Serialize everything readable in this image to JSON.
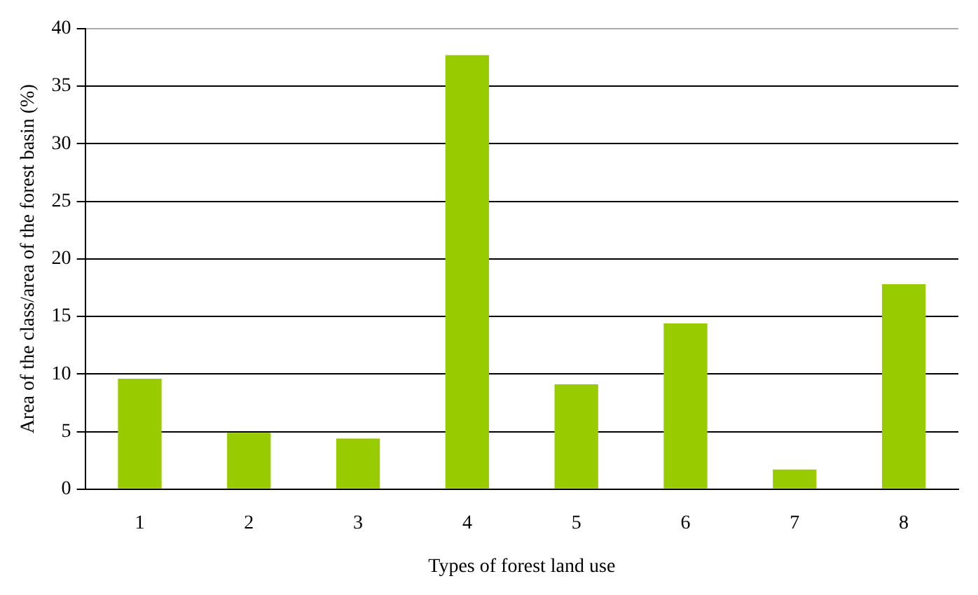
{
  "chart_data": {
    "type": "bar",
    "xlabel": "Types of forest land use",
    "ylabel": "Area of the class/area of the forest basin (%)",
    "categories": [
      "1",
      "2",
      "3",
      "4",
      "5",
      "6",
      "7",
      "8"
    ],
    "values": [
      9.6,
      4.9,
      4.4,
      37.7,
      9.1,
      14.4,
      1.7,
      17.8
    ],
    "color": "#99cc00",
    "ylim": [
      0,
      40
    ],
    "yticks": [
      0,
      5,
      10,
      15,
      20,
      25,
      30,
      35,
      40
    ],
    "grid": "y",
    "legend": false
  }
}
